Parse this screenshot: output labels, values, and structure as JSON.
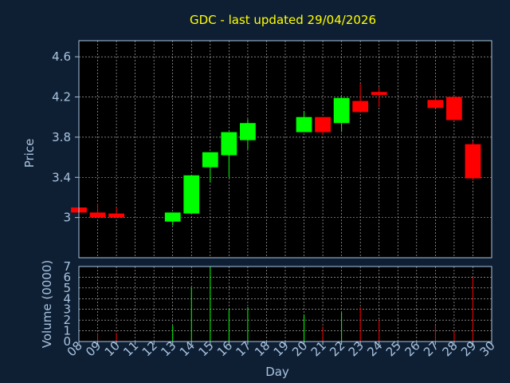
{
  "chart_data": {
    "type": "candlestick",
    "title": "GDC - last updated 29/04/2026",
    "xlabel": "Day",
    "ylabel_price": "Price",
    "ylabel_volume": "Volume (0000)",
    "x_ticks": [
      "08",
      "09",
      "10",
      "11",
      "12",
      "13",
      "14",
      "15",
      "16",
      "17",
      "18",
      "19",
      "20",
      "21",
      "22",
      "23",
      "24",
      "25",
      "26",
      "27",
      "28",
      "29",
      "30"
    ],
    "price_yticks": [
      3,
      3.4,
      3.8,
      4.2,
      4.6
    ],
    "price_ylim": [
      2.6,
      4.76
    ],
    "volume_yticks": [
      0,
      1,
      2,
      3,
      4,
      5,
      6,
      7
    ],
    "volume_ylim": [
      0,
      7
    ],
    "grid": true,
    "colors": {
      "background": "#0f1f33",
      "plot_bg": "#000000",
      "title": "#ffff00",
      "axis_text": "#a8c4e0",
      "up": "#00ff00",
      "down": "#ff0000",
      "grid": "#c8c8c8"
    },
    "candles": [
      {
        "day": 8,
        "open": 3.1,
        "close": 3.05,
        "high": 3.1,
        "low": 3.05,
        "volume": 0.0
      },
      {
        "day": 9,
        "open": 3.05,
        "close": 3.0,
        "high": 3.14,
        "low": 3.0,
        "volume": 0.8
      },
      {
        "day": 10,
        "open": 3.04,
        "close": 3.0,
        "high": 3.1,
        "low": 3.0,
        "volume": 0.8
      },
      {
        "day": 13,
        "open": 2.96,
        "close": 3.05,
        "high": 3.05,
        "low": 2.92,
        "volume": 1.5
      },
      {
        "day": 14,
        "open": 3.04,
        "close": 3.42,
        "high": 3.42,
        "low": 3.04,
        "volume": 5.0
      },
      {
        "day": 15,
        "open": 3.5,
        "close": 3.65,
        "high": 3.65,
        "low": 3.35,
        "volume": 7.0
      },
      {
        "day": 16,
        "open": 3.62,
        "close": 3.85,
        "high": 3.85,
        "low": 3.4,
        "volume": 3.0
      },
      {
        "day": 17,
        "open": 3.77,
        "close": 3.94,
        "high": 3.98,
        "low": 3.68,
        "volume": 3.2
      },
      {
        "day": 20,
        "open": 3.85,
        "close": 4.0,
        "high": 4.06,
        "low": 3.85,
        "volume": 2.5
      },
      {
        "day": 21,
        "open": 4.0,
        "close": 3.85,
        "high": 4.0,
        "low": 3.82,
        "volume": 1.4
      },
      {
        "day": 22,
        "open": 3.94,
        "close": 4.19,
        "high": 4.2,
        "low": 3.85,
        "volume": 2.7
      },
      {
        "day": 23,
        "open": 4.16,
        "close": 4.05,
        "high": 4.33,
        "low": 4.05,
        "volume": 3.2
      },
      {
        "day": 24,
        "open": 4.25,
        "close": 4.22,
        "high": 4.3,
        "low": 4.1,
        "volume": 2.0
      },
      {
        "day": 27,
        "open": 4.17,
        "close": 4.09,
        "high": 4.26,
        "low": 4.09,
        "volume": 1.5
      },
      {
        "day": 28,
        "open": 4.2,
        "close": 3.97,
        "high": 4.2,
        "low": 3.97,
        "volume": 0.9
      },
      {
        "day": 29,
        "open": 3.73,
        "close": 3.39,
        "high": 3.76,
        "low": 3.37,
        "volume": 6.0
      }
    ]
  }
}
